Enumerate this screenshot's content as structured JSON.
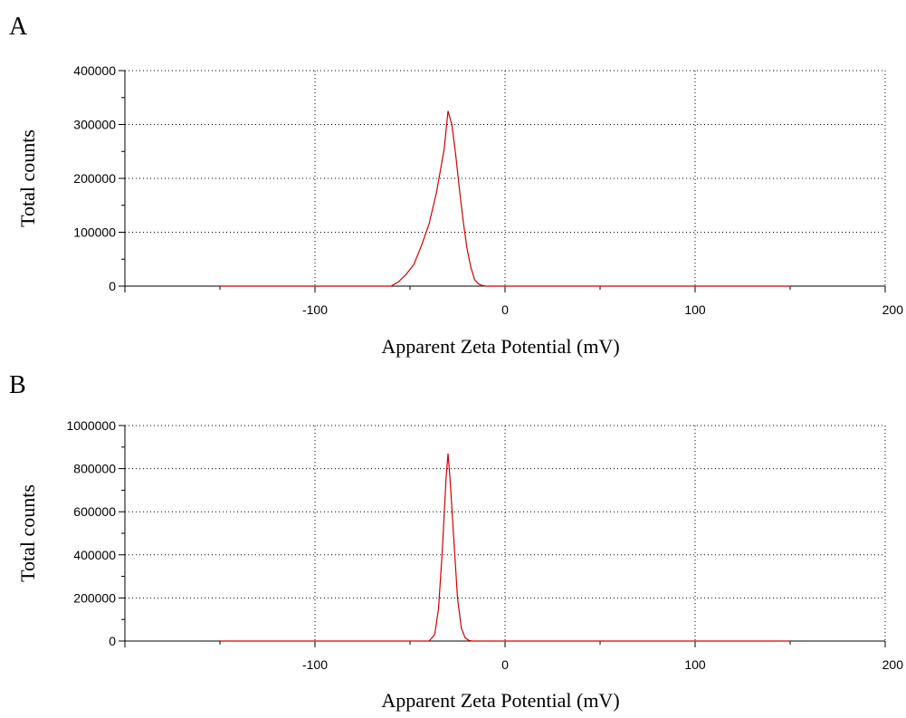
{
  "chart_data": [
    {
      "type": "line",
      "panel": "A",
      "xlabel": "Apparent Zeta Potential (mV)",
      "ylabel": "Total counts",
      "xlim": [
        -200,
        200
      ],
      "ylim": [
        0,
        400000
      ],
      "xticks": [
        -100,
        0,
        100,
        200
      ],
      "xtick_labels": [
        "-100",
        "0",
        "100",
        "200"
      ],
      "yticks": [
        0,
        100000,
        200000,
        300000,
        400000
      ],
      "ytick_labels": [
        "0",
        "100000",
        "200000",
        "300000",
        "400000"
      ],
      "grid": true,
      "series_color": "#d10000",
      "series": [
        {
          "x": [
            -150,
            -60,
            -56,
            -52,
            -48,
            -44,
            -40,
            -36,
            -32,
            -30,
            -28,
            -26,
            -24,
            -22,
            -20,
            -18,
            -16,
            -14,
            -12,
            -10,
            150
          ],
          "y": [
            0,
            0,
            8000,
            22000,
            40000,
            75000,
            115000,
            175000,
            255000,
            325000,
            300000,
            245000,
            180000,
            120000,
            70000,
            35000,
            12000,
            4000,
            1000,
            0,
            0
          ]
        }
      ]
    },
    {
      "type": "line",
      "panel": "B",
      "xlabel": "Apparent Zeta Potential (mV)",
      "ylabel": "Total counts",
      "xlim": [
        -200,
        200
      ],
      "ylim": [
        0,
        1000000
      ],
      "xticks": [
        -100,
        0,
        100,
        200
      ],
      "xtick_labels": [
        "-100",
        "0",
        "100",
        "200"
      ],
      "yticks": [
        0,
        200000,
        400000,
        600000,
        800000,
        1000000
      ],
      "ytick_labels": [
        "0",
        "200000",
        "400000",
        "600000",
        "800000",
        "1000000"
      ],
      "grid": true,
      "series_color": "#d10000",
      "series": [
        {
          "x": [
            -150,
            -40,
            -37,
            -35,
            -33,
            -31,
            -30,
            -29,
            -27,
            -25,
            -23,
            -21,
            -19,
            -17,
            150
          ],
          "y": [
            0,
            0,
            30000,
            150000,
            420000,
            760000,
            870000,
            760000,
            480000,
            200000,
            60000,
            15000,
            3000,
            0,
            0
          ]
        }
      ]
    }
  ]
}
